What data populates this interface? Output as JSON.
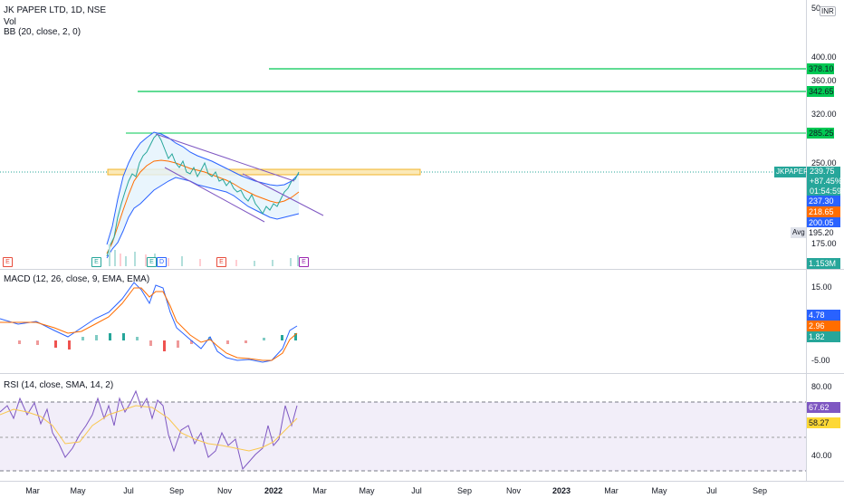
{
  "main": {
    "legend_title": "JK PAPER LTD, 1D, NSE",
    "legend_vol": "Vol",
    "legend_bb": "BB (20, close, 2, 0)",
    "currency": "INR",
    "price_ticks": [
      "400.00",
      "360.00",
      "320.00",
      "250.00",
      "175.00"
    ],
    "tag_378": "378.10",
    "tag_342": "342.65",
    "tag_285": "285.25",
    "symbol_tag": "JKPAPER",
    "last_price": "239.75",
    "change_pct": "+87.45%",
    "countdown": "01:54:59",
    "bb_upper": "237.30",
    "bb_basis": "218.65",
    "bb_lower": "200.05",
    "avg_label": "Avg",
    "avg_value": "195.20",
    "volume_tag": "1.153M",
    "top_tick": "50"
  },
  "macd": {
    "legend": "MACD (12, 26, close, 9, EMA, EMA)",
    "ticks": [
      "15.00",
      "-5.00"
    ],
    "macd_value": "4.78",
    "signal_value": "2.96",
    "hist_value": "1.82"
  },
  "rsi": {
    "legend": "RSI (14, close, SMA, 14, 2)",
    "ticks": [
      "80.00",
      "40.00"
    ],
    "rsi_value": "67.62",
    "sma_value": "58.27"
  },
  "time_axis": [
    "Mar",
    "May",
    "Jul",
    "Sep",
    "Nov",
    "2022",
    "Mar",
    "May",
    "Jul",
    "Sep",
    "Nov",
    "2023",
    "Mar",
    "May",
    "Jul",
    "Sep"
  ],
  "colors": {
    "candle_up": "#26a69a",
    "candle_down": "#ef5350",
    "bb_band": "#2962ff",
    "bb_basis": "#ff6d00",
    "level_line": "#00c853",
    "zone": "#f5d98a",
    "channel": "#7e57c2",
    "rsi_fill": "#ede7f6"
  },
  "event_badges": [
    "E",
    "E",
    "E",
    "D",
    "E",
    "E"
  ]
}
